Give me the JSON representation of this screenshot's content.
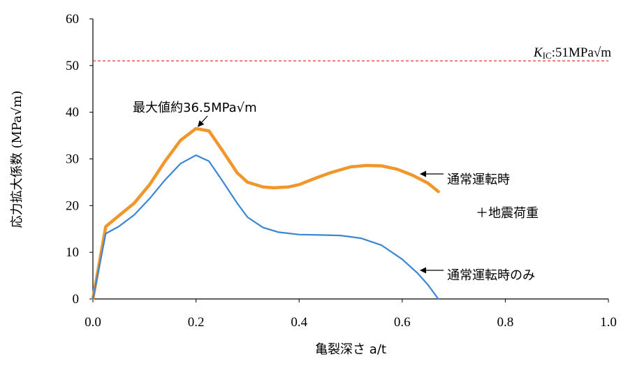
{
  "chart_data": {
    "type": "line",
    "xlabel": "亀裂深さ a/t",
    "ylabel": "応力拡大係数 (MPa√m)",
    "xlim": [
      0.0,
      1.0
    ],
    "ylim": [
      0,
      60
    ],
    "xticks": [
      "0.0",
      "0.2",
      "0.4",
      "0.6",
      "0.8",
      "1.0"
    ],
    "yticks": [
      "0",
      "10",
      "20",
      "30",
      "40",
      "50",
      "60"
    ],
    "grid": false,
    "series": [
      {
        "name": "通常運転時＋地震荷重",
        "color": "#f0962a",
        "x": [
          0.0,
          0.025,
          0.05,
          0.08,
          0.11,
          0.14,
          0.17,
          0.2,
          0.225,
          0.25,
          0.28,
          0.3,
          0.33,
          0.35,
          0.38,
          0.4,
          0.43,
          0.46,
          0.5,
          0.53,
          0.56,
          0.59,
          0.62,
          0.65,
          0.67
        ],
        "y": [
          0.0,
          15.5,
          17.8,
          20.5,
          24.5,
          29.5,
          34.0,
          36.5,
          36.0,
          32.0,
          27.0,
          25.0,
          24.0,
          23.8,
          24.0,
          24.5,
          25.8,
          27.0,
          28.3,
          28.6,
          28.5,
          27.8,
          26.5,
          24.8,
          23.0
        ]
      },
      {
        "name": "通常運転時のみ",
        "color": "#3a86d4",
        "x": [
          0.0,
          0.025,
          0.05,
          0.08,
          0.11,
          0.14,
          0.17,
          0.2,
          0.225,
          0.25,
          0.28,
          0.3,
          0.33,
          0.36,
          0.4,
          0.44,
          0.48,
          0.52,
          0.56,
          0.6,
          0.63,
          0.65,
          0.67
        ],
        "y": [
          0.0,
          14.0,
          15.5,
          18.0,
          21.5,
          25.5,
          29.0,
          30.8,
          29.5,
          25.5,
          20.5,
          17.5,
          15.3,
          14.3,
          13.8,
          13.7,
          13.6,
          13.0,
          11.5,
          8.5,
          5.5,
          3.0,
          0.0
        ]
      }
    ],
    "reference_line": {
      "label_k": "K",
      "label_sub": "IC",
      "label_rest": ":51MPa√m",
      "y": 51,
      "color": "#e8302f",
      "style": "dashed"
    },
    "annotations": [
      {
        "text": "最大値約36.5MPa√m",
        "x": 0.2,
        "y": 36.5
      },
      {
        "text": "通常運転時",
        "x": 0.64,
        "y": 27.0
      },
      {
        "text": "＋地震荷重",
        "x": 0.76,
        "y": 18.5
      },
      {
        "text": "通常運転時のみ",
        "x": 0.64,
        "y": 5.5
      }
    ]
  }
}
